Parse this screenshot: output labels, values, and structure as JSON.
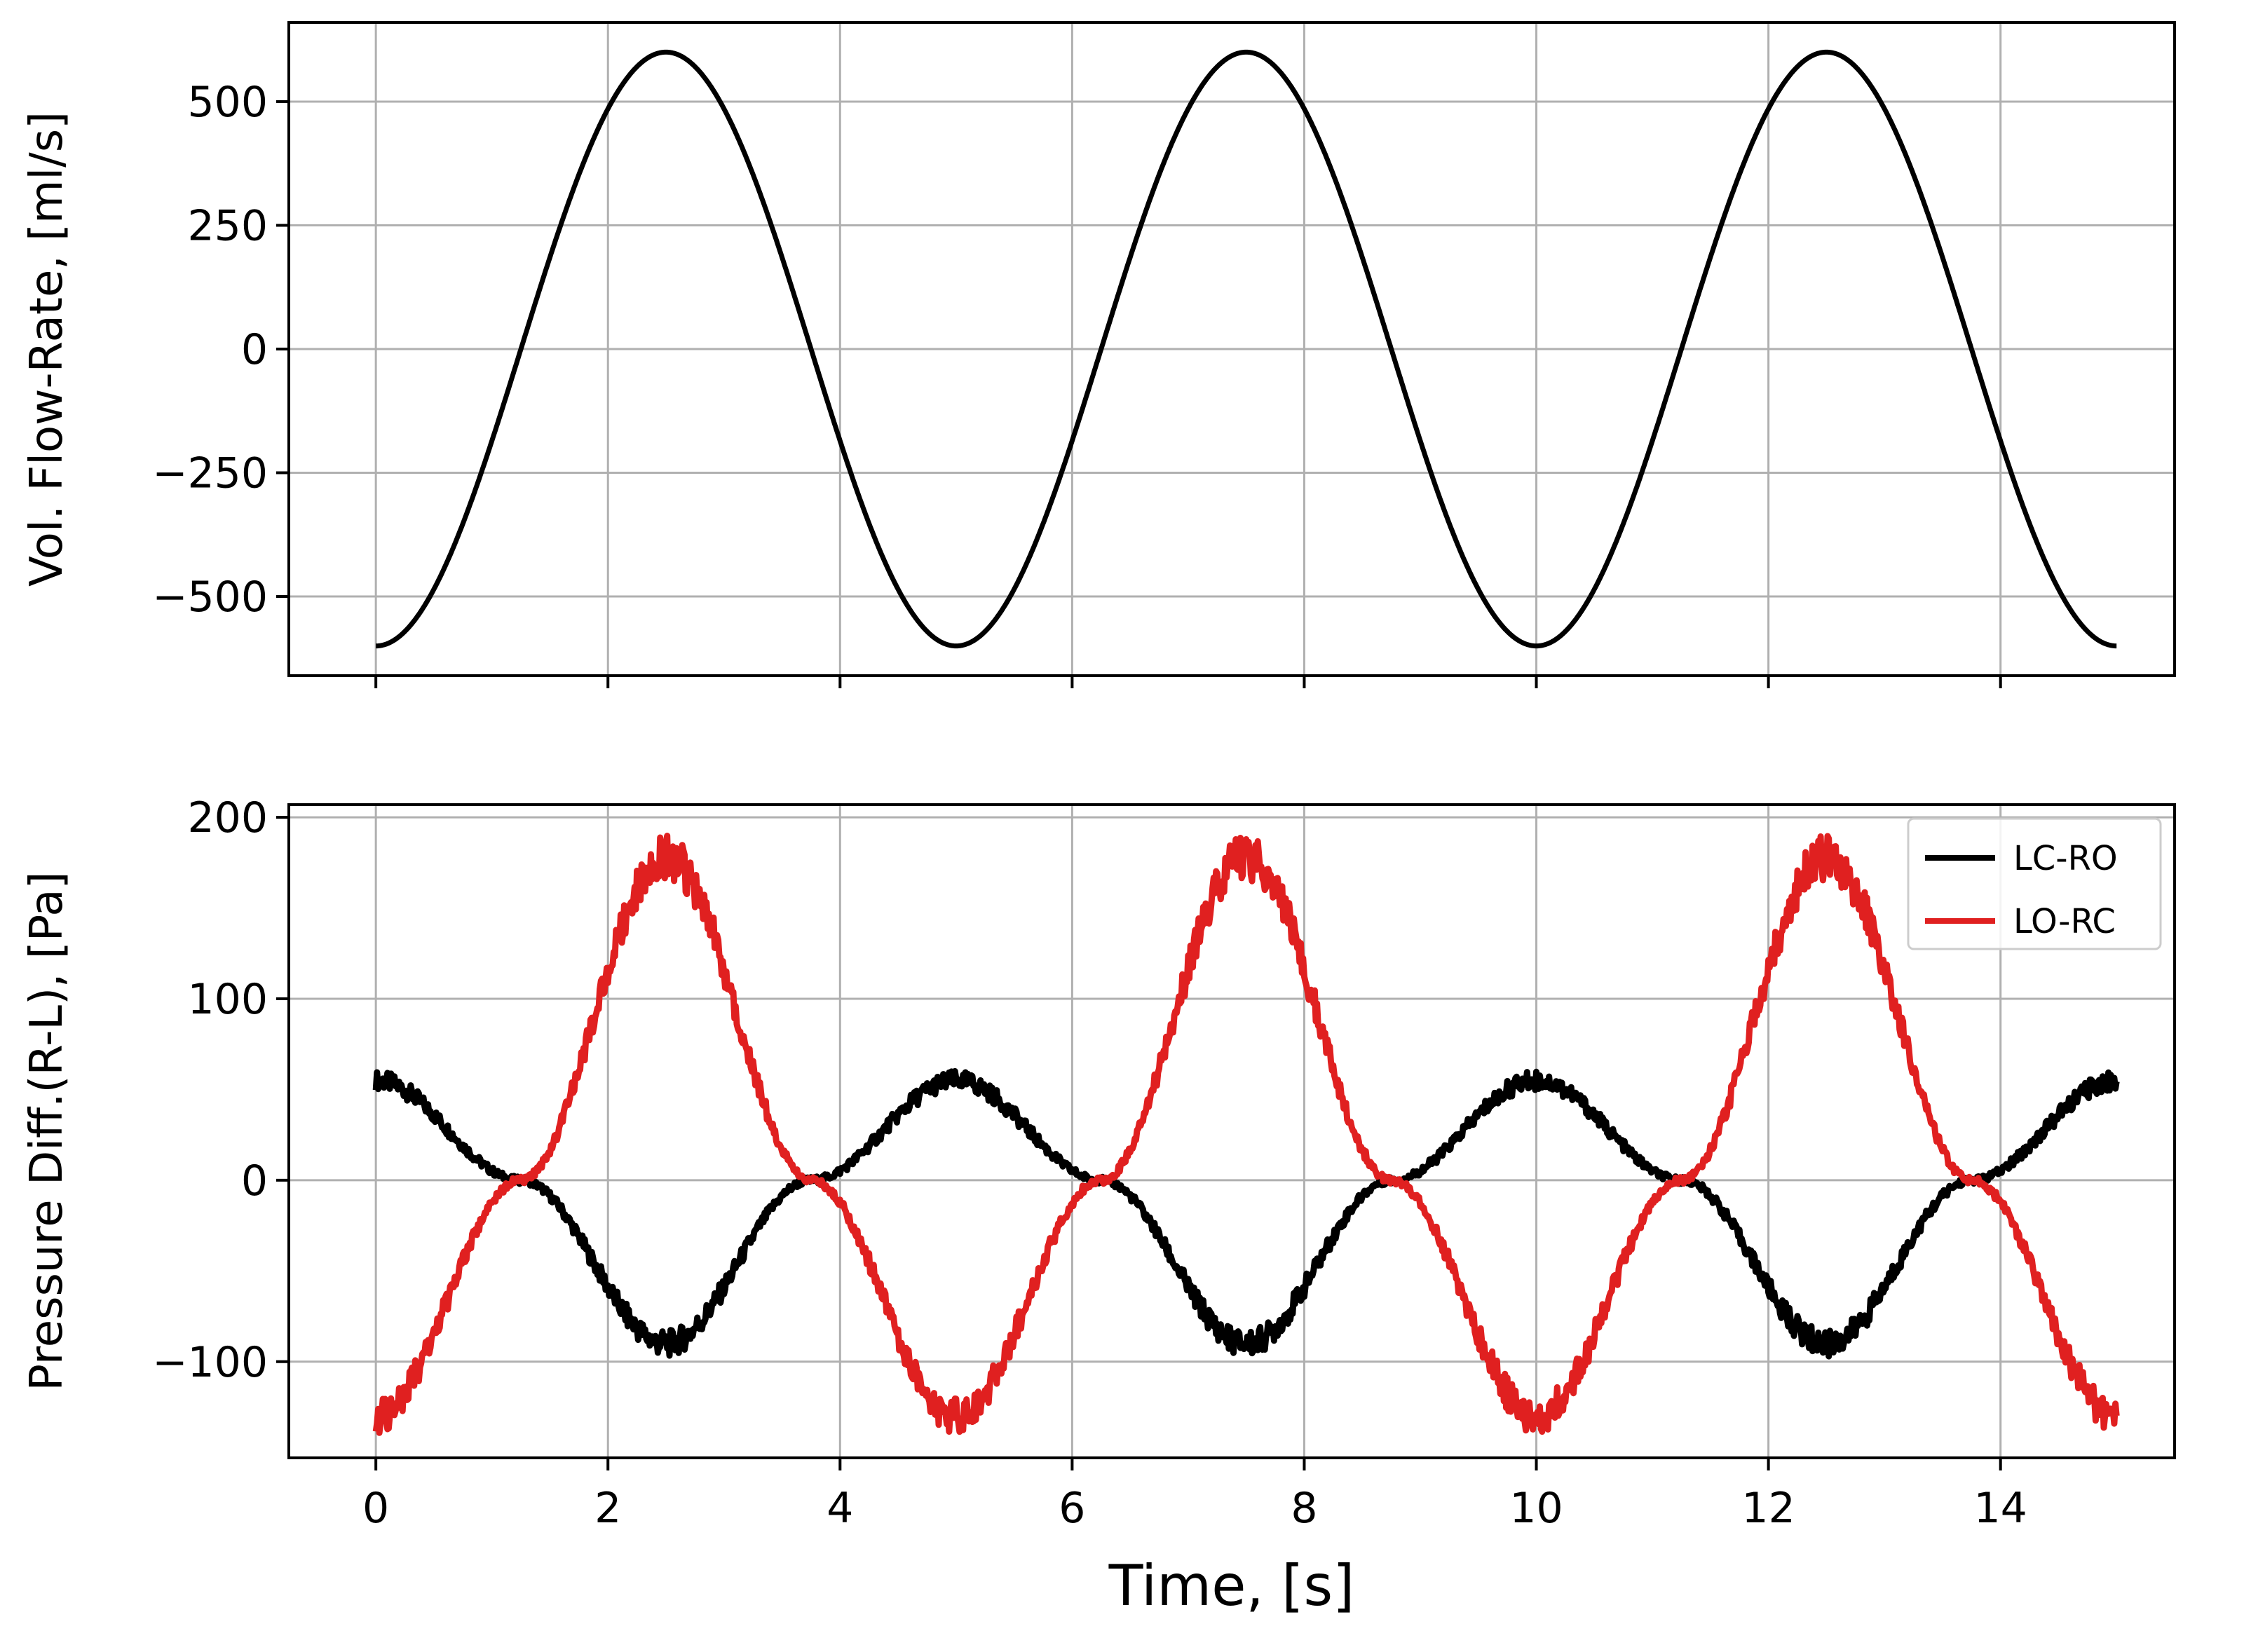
{
  "chart_data": [
    {
      "type": "line",
      "title": "",
      "xlabel": "",
      "ylabel": "Vol. Flow-Rate, [ml/s]",
      "xlim": [
        -0.75,
        15.5
      ],
      "ylim": [
        -660,
        660
      ],
      "xticks": [
        0,
        2,
        4,
        6,
        8,
        10,
        12,
        14
      ],
      "xtick_labels_visible": false,
      "yticks": [
        -500,
        -250,
        0,
        250,
        500
      ],
      "ytick_labels": [
        "−500",
        "−250",
        "0",
        "250",
        "500"
      ],
      "grid": true,
      "series": [
        {
          "color": "#000000",
          "x": [
            0,
            2.5,
            5,
            7.5,
            10,
            12.5,
            15
          ],
          "y": [
            -600,
            600,
            -600,
            600,
            -600,
            600,
            -600
          ],
          "shape": "sinusoid"
        }
      ]
    },
    {
      "type": "line",
      "title": "",
      "xlabel": "Time, [s]",
      "ylabel": "Pressure Diff.(R-L), [Pa]",
      "xlim": [
        -0.75,
        15.5
      ],
      "ylim": [
        -153,
        207
      ],
      "xticks": [
        0,
        2,
        4,
        6,
        8,
        10,
        12,
        14
      ],
      "xtick_labels": [
        "0",
        "2",
        "4",
        "6",
        "8",
        "10",
        "12",
        "14"
      ],
      "yticks": [
        -100,
        0,
        100,
        200
      ],
      "ytick_labels": [
        "−100",
        "0",
        "100",
        "200"
      ],
      "grid": true,
      "legend": {
        "placement": "top-right"
      },
      "series": [
        {
          "name": "LC-RO",
          "color": "#000000",
          "x": [
            0,
            1.25,
            2.5,
            3.75,
            5,
            6.25,
            7.5,
            8.75,
            10,
            11.25,
            12.5,
            13.75,
            15
          ],
          "y": [
            55,
            0,
            -90,
            0,
            55,
            0,
            -90,
            0,
            55,
            0,
            -90,
            0,
            55
          ]
        },
        {
          "name": "LO-RC",
          "color": "#e02020",
          "x": [
            0,
            1.25,
            2.5,
            3.75,
            5,
            6.25,
            7.5,
            8.75,
            10,
            11.25,
            12.5,
            13.75,
            15
          ],
          "y": [
            -130,
            0,
            178,
            0,
            -130,
            0,
            178,
            0,
            -130,
            0,
            178,
            0,
            -130
          ]
        }
      ]
    }
  ]
}
